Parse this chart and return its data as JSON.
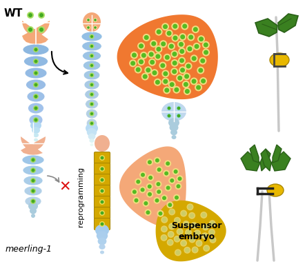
{
  "bg": "#ffffff",
  "orange": "#F07830",
  "light_orange": "#F4A878",
  "peach": "#F0B090",
  "blue_light": "#C0D8EE",
  "blue_mid": "#90BAD8",
  "blue_deep": "#6090BB",
  "green_dot": "#44AA22",
  "green_ring": "#CCEE88",
  "yellow": "#D4A800",
  "yellow_light": "#E8C840",
  "plant_green": "#3A8020",
  "plant_green2": "#4A9A2A",
  "seed_yellow": "#E8B800",
  "stem_gray": "#C8C8C8",
  "black_clamp": "#222222",
  "red_x": "#DD1111",
  "arrow_col": "#111111",
  "wt_label": "WT",
  "meerling_label": "meerling-1",
  "reprog_label": "reprogramming",
  "suspensor_label": "Suspensor\nembryo"
}
